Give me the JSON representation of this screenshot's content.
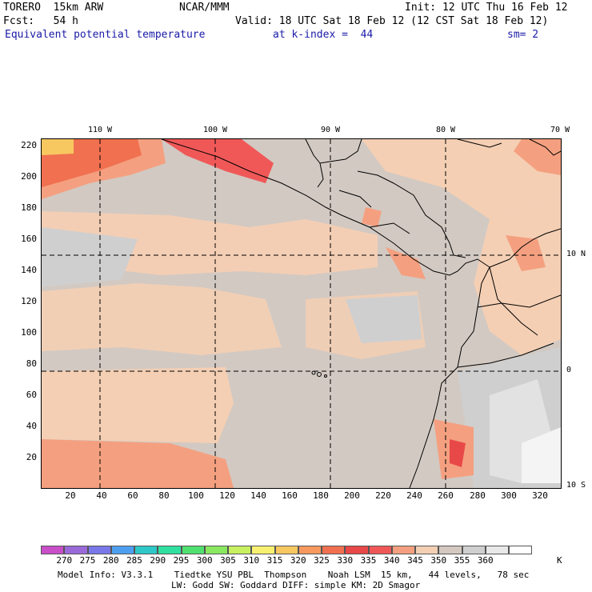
{
  "header": {
    "model": "TORERO  15km ARW",
    "center": "NCAR/MMM",
    "init": "Init: 12 UTC Thu 16 Feb 12",
    "fcst": "Fcst:   54 h",
    "valid": "Valid: 18 UTC Sat 18 Feb 12 (12 CST Sat 18 Feb 12)",
    "field": "Equivalent potential temperature",
    "level": "at k-index =  44",
    "smooth": "sm= 2"
  },
  "map": {
    "lon_labels": [
      "110 W",
      "100 W",
      "90 W",
      "80 W",
      "70 W"
    ],
    "lat_labels": [
      "10 N",
      "0",
      "10 S"
    ],
    "x_ticks": [
      "20",
      "40",
      "60",
      "80",
      "100",
      "120",
      "140",
      "160",
      "180",
      "200",
      "220",
      "240",
      "260",
      "280",
      "300",
      "320"
    ],
    "y_ticks": [
      "220",
      "200",
      "180",
      "160",
      "140",
      "120",
      "100",
      "80",
      "60",
      "40",
      "20"
    ]
  },
  "colorbar": {
    "labels": [
      "270",
      "275",
      "280",
      "285",
      "290",
      "295",
      "300",
      "305",
      "310",
      "315",
      "320",
      "325",
      "330",
      "335",
      "340",
      "345",
      "350",
      "355",
      "360"
    ],
    "unit": "K",
    "colors": [
      "#c84fc8",
      "#9a6ad8",
      "#7a78e8",
      "#4f9ff0",
      "#2ec8c8",
      "#30e0a0",
      "#50e070",
      "#8ae860",
      "#c8f060",
      "#f8f070",
      "#f8c860",
      "#f89a60",
      "#f07050",
      "#e84848",
      "#f05858",
      "#f4a080",
      "#f4cfb4",
      "#d4c8c0",
      "#cfcfcf",
      "#e8e8e8",
      "#ffffff"
    ]
  },
  "footer": {
    "line1": "Model Info: V3.3.1    Tiedtke YSU PBL  Thompson    Noah LSM  15 km,   44 levels,   78 sec",
    "line2": "LW: Godd SW: Goddard DIFF: simple KM: 2D Smagor"
  }
}
